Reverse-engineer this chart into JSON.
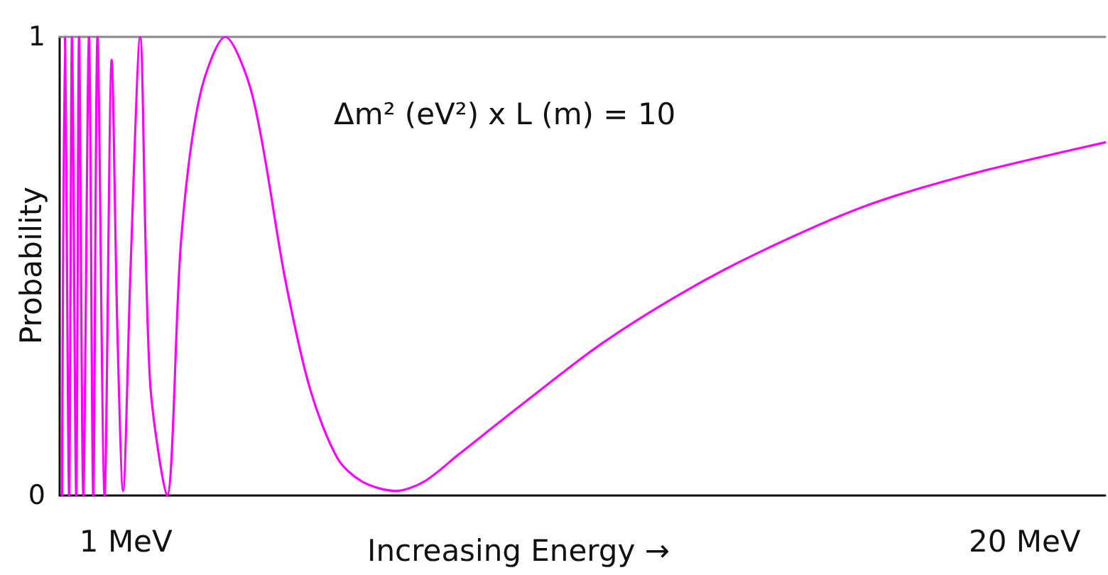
{
  "chart_data": {
    "type": "line",
    "xlabel": "Increasing Energy →",
    "ylabel": "Probability",
    "annotations": [
      "Δm² (eV²) x L (m) = 10"
    ],
    "xlim": [
      -0.4,
      21.7
    ],
    "xticks": [
      {
        "value": 1,
        "label": "1 MeV"
      },
      {
        "value": 20,
        "label": "20 MeV"
      }
    ],
    "ylim": [
      0,
      1
    ],
    "yticks": [
      0,
      1
    ],
    "grid": false,
    "marker": "none",
    "line_style": "solid",
    "x": [
      -0.35,
      -0.29,
      -0.2,
      -0.14,
      -0.05,
      0.01,
      0.1,
      0.22,
      0.31,
      0.4,
      0.55,
      0.7,
      0.82,
      0.94,
      1.1,
      1.3,
      1.51,
      1.87,
      2.17,
      2.56,
      3.1,
      3.68,
      4.37,
      4.9,
      5.48,
      6.0,
      6.7,
      7.3,
      8.04,
      9.39,
      11.04,
      12.73,
      14.38,
      16.6,
      18.83,
      21.7
    ],
    "series": [
      {
        "color": "#ff00ff",
        "values": [
          0,
          1,
          0,
          1,
          0,
          1,
          0,
          1,
          0,
          1,
          0,
          0.95,
          0.36,
          0.01,
          0.5,
          1,
          0.25,
          0,
          0.56,
          0.87,
          1,
          0.87,
          0.47,
          0.23,
          0.08,
          0.03,
          0.01,
          0.03,
          0.09,
          0.2,
          0.33,
          0.44,
          0.53,
          0.63,
          0.7,
          0.77
        ]
      }
    ]
  }
}
